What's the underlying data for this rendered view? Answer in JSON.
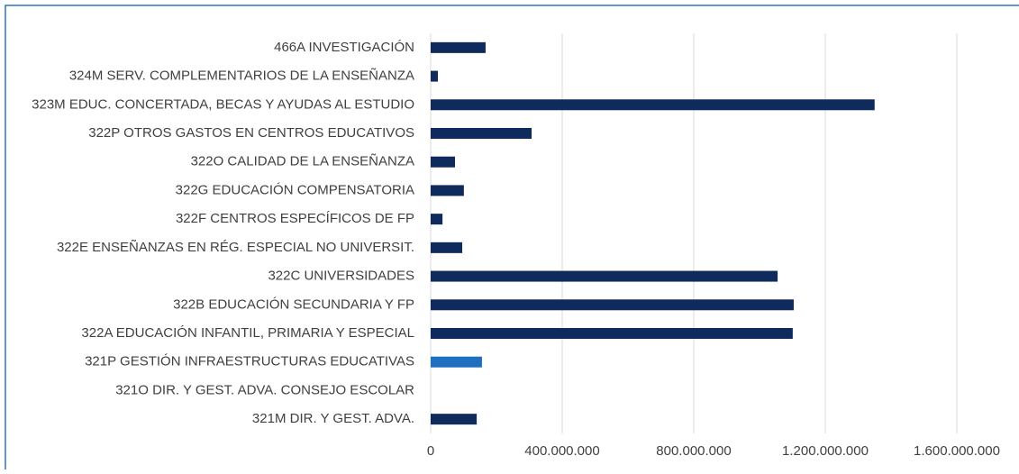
{
  "chart_data": {
    "type": "hbar",
    "categories": [
      "466A INVESTIGACIÓN",
      "324M SERV. COMPLEMENTARIOS DE LA ENSEÑANZA",
      "323M EDUC. CONCERTADA, BECAS Y AYUDAS AL ESTUDIO",
      "322P OTROS GASTOS EN CENTROS EDUCATIVOS",
      "322O CALIDAD DE LA ENSEÑANZA",
      "322G EDUCACIÓN COMPENSATORIA",
      "322F CENTROS ESPECÍFICOS DE FP",
      "322E ENSEÑANZAS EN RÉG. ESPECIAL NO UNIVERSIT.",
      "322C UNIVERSIDADES",
      "322B EDUCACIÓN SECUNDARIA Y FP",
      "322A EDUCACIÓN INFANTIL, PRIMARIA Y ESPECIAL",
      "321P GESTIÓN INFRAESTRUCTURAS EDUCATIVAS",
      "321O DIR. Y GEST. ADVA. CONSEJO ESCOLAR",
      "321M DIR. Y GEST. ADVA."
    ],
    "values": [
      167000000,
      22000000,
      1350000000,
      307000000,
      74000000,
      101000000,
      36000000,
      96000000,
      1055000000,
      1104000000,
      1101000000,
      156000000,
      0,
      140000000
    ],
    "colors": [
      "#0f2a5c",
      "#0f2a5c",
      "#0f2a5c",
      "#0f2a5c",
      "#0f2a5c",
      "#0f2a5c",
      "#0f2a5c",
      "#0f2a5c",
      "#0f2a5c",
      "#0f2a5c",
      "#0f2a5c",
      "#1f6fbf",
      "#0f2a5c",
      "#0f2a5c"
    ],
    "xlim": [
      0,
      1750000000
    ],
    "xticks": [
      0,
      {
        "value": 400000000,
        "label": "400.000.000"
      },
      {
        "value": 800000000,
        "label": "800.000.000"
      },
      {
        "value": 1200000000,
        "label": "1.200.000.000"
      },
      {
        "value": 1600000000,
        "label": "1.600.000.000"
      }
    ],
    "grid": true
  }
}
